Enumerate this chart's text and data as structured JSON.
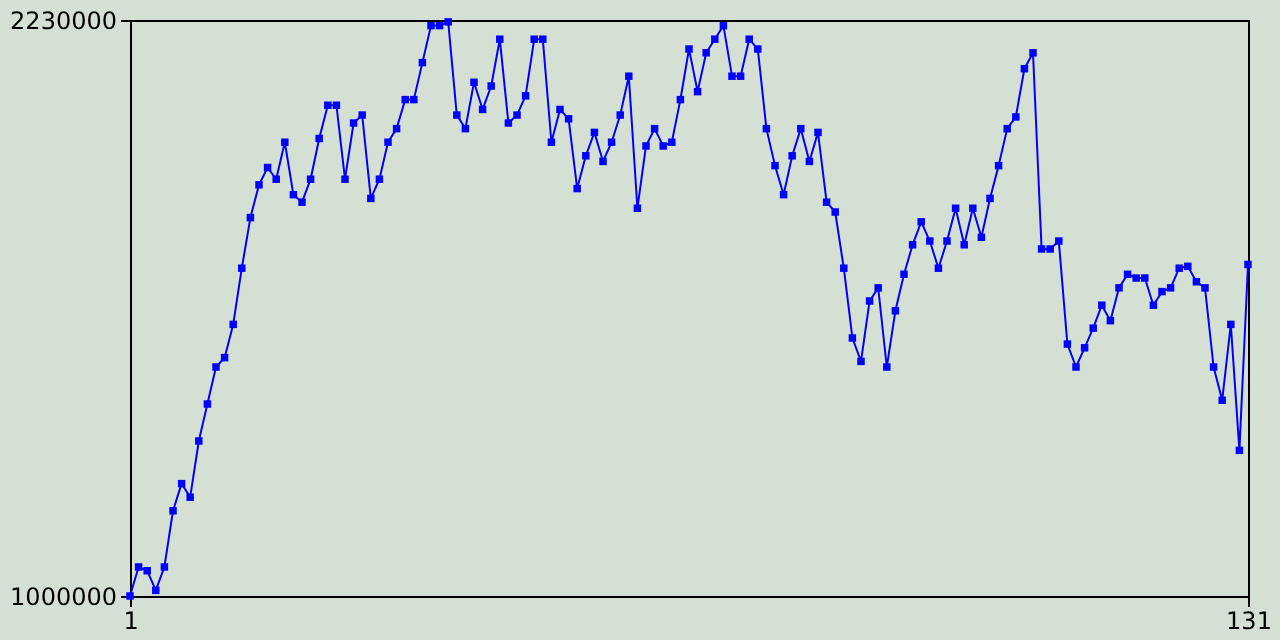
{
  "chart_data": {
    "type": "line",
    "x": [
      1,
      2,
      3,
      4,
      5,
      6,
      7,
      8,
      9,
      10,
      11,
      12,
      13,
      14,
      15,
      16,
      17,
      18,
      19,
      20,
      21,
      22,
      23,
      24,
      25,
      26,
      27,
      28,
      29,
      30,
      31,
      32,
      33,
      34,
      35,
      36,
      37,
      38,
      39,
      40,
      41,
      42,
      43,
      44,
      45,
      46,
      47,
      48,
      49,
      50,
      51,
      52,
      53,
      54,
      55,
      56,
      57,
      58,
      59,
      60,
      61,
      62,
      63,
      64,
      65,
      66,
      67,
      68,
      69,
      70,
      71,
      72,
      73,
      74,
      75,
      76,
      77,
      78,
      79,
      80,
      81,
      82,
      83,
      84,
      85,
      86,
      87,
      88,
      89,
      90,
      91,
      92,
      93,
      94,
      95,
      96,
      97,
      98,
      99,
      100,
      101,
      102,
      103,
      104,
      105,
      106,
      107,
      108,
      109,
      110,
      111,
      112,
      113,
      114,
      115,
      116,
      117,
      118,
      119,
      120,
      121,
      122,
      123,
      124,
      125,
      126,
      127,
      128,
      129,
      130,
      131
    ],
    "series": [
      {
        "color": "#0000ff",
        "values": [
          1000000,
          1062000,
          1054000,
          1012000,
          1062000,
          1182000,
          1240000,
          1211000,
          1331000,
          1410000,
          1489000,
          1509000,
          1580000,
          1700000,
          1808000,
          1878000,
          1915000,
          1890000,
          1969000,
          1857000,
          1841000,
          1890000,
          1977000,
          2048000,
          2048000,
          1890000,
          2010000,
          2027000,
          1849000,
          1890000,
          1969000,
          1998000,
          2060000,
          2060000,
          2139000,
          2218000,
          2218000,
          2226000,
          2027000,
          1998000,
          2097000,
          2039000,
          2089000,
          2189000,
          2010000,
          2027000,
          2068000,
          2189000,
          2189000,
          1969000,
          2039000,
          2019000,
          1870000,
          1940000,
          1990000,
          1928000,
          1969000,
          2027000,
          2110000,
          1828000,
          1961000,
          1998000,
          1961000,
          1969000,
          2060000,
          2168000,
          2077000,
          2160000,
          2189000,
          2218000,
          2110000,
          2110000,
          2189000,
          2168000,
          1998000,
          1919000,
          1857000,
          1940000,
          1998000,
          1928000,
          1990000,
          1841000,
          1820000,
          1700000,
          1551000,
          1501000,
          1630000,
          1658000,
          1489000,
          1609000,
          1687000,
          1750000,
          1799000,
          1758000,
          1700000,
          1758000,
          1828000,
          1750000,
          1828000,
          1766000,
          1849000,
          1919000,
          1998000,
          2023000,
          2126000,
          2160000,
          1741000,
          1741000,
          1758000,
          1538000,
          1489000,
          1530000,
          1572000,
          1621000,
          1588000,
          1658000,
          1687000,
          1679000,
          1679000,
          1621000,
          1650000,
          1658000,
          1700000,
          1704000,
          1671000,
          1658000,
          1489000,
          1418000,
          1580000,
          1311000,
          1708000
        ]
      }
    ],
    "xlim": [
      1,
      131
    ],
    "xticks": [
      1,
      131
    ],
    "ylim": [
      1000000,
      2230000
    ],
    "yticks": [
      1000000,
      2230000
    ],
    "grid": false,
    "legend": false,
    "marker": "square",
    "line_style": "solid"
  }
}
